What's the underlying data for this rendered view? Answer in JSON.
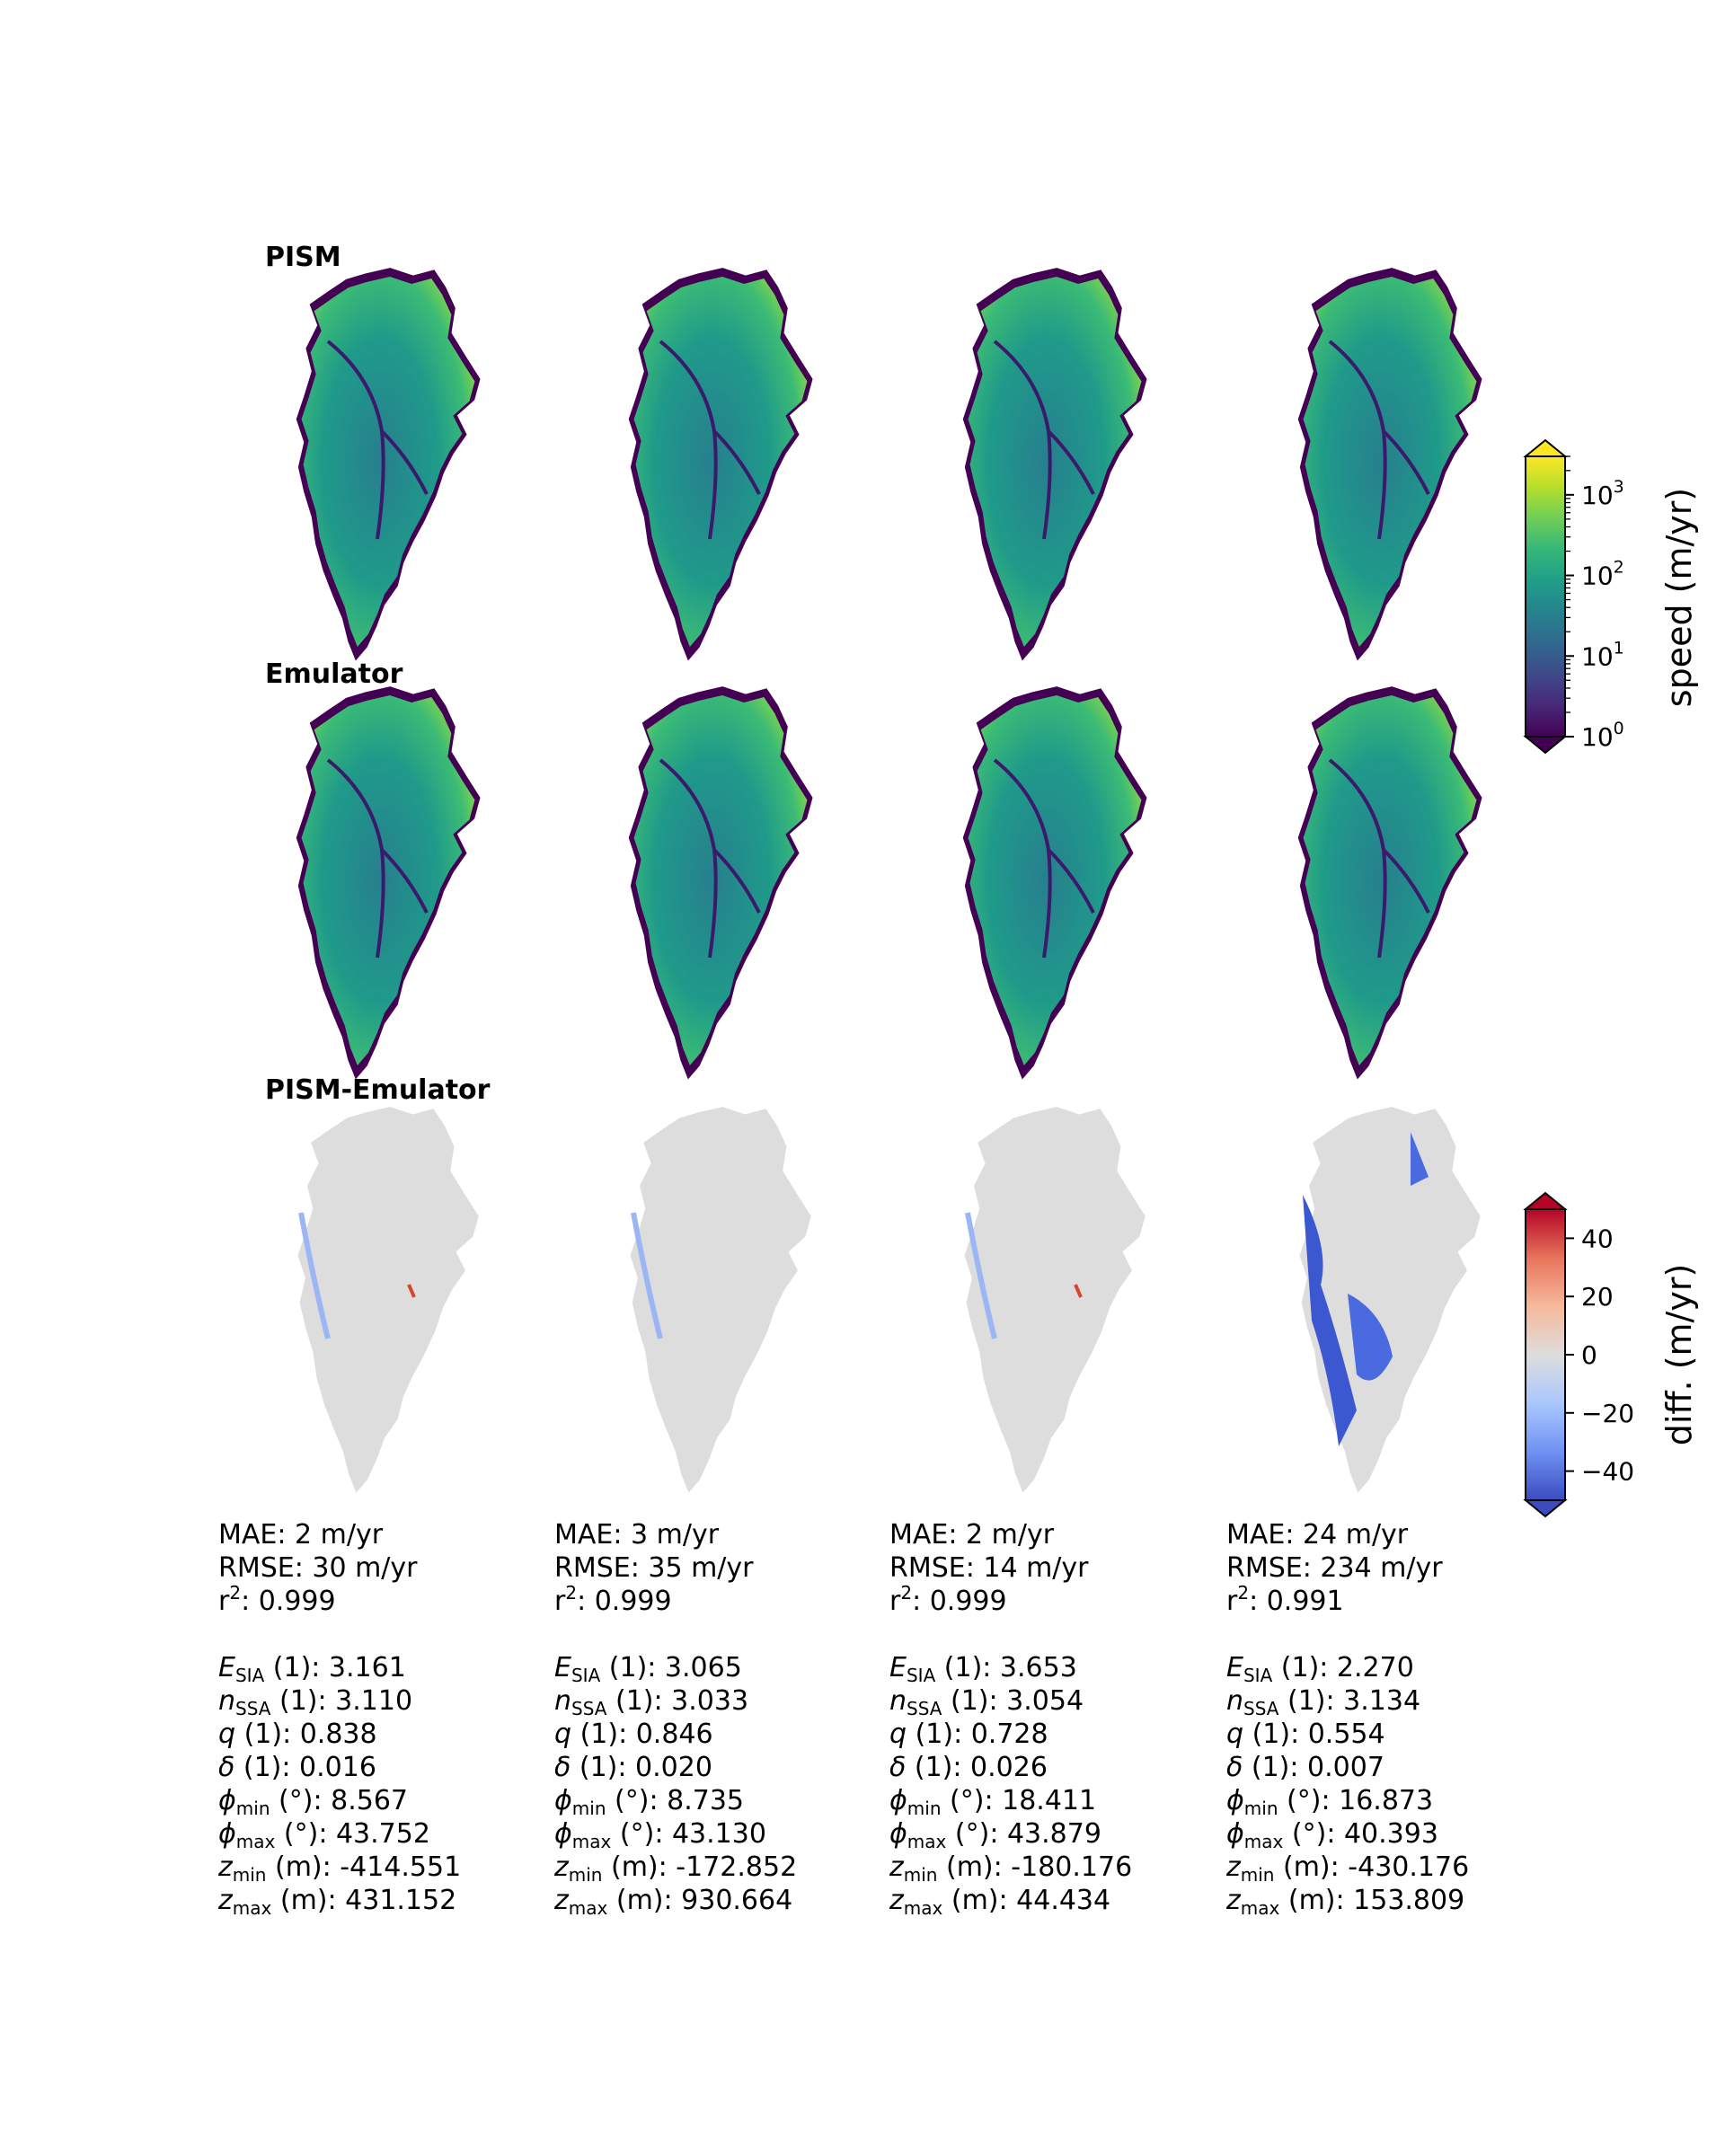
{
  "chart_data": {
    "type": "heatmap",
    "rows": [
      "PISM",
      "Emulator",
      "PISM-Emulator"
    ],
    "speed_colorbar": {
      "label": "speed (m/yr)",
      "scale": "log",
      "range": [
        1,
        3000
      ],
      "ticks": [
        {
          "base": "10",
          "exp": "0",
          "value": 1
        },
        {
          "base": "10",
          "exp": "1",
          "value": 10
        },
        {
          "base": "10",
          "exp": "2",
          "value": 100
        },
        {
          "base": "10",
          "exp": "3",
          "value": 1000
        }
      ],
      "colormap": [
        "#440154",
        "#482878",
        "#3e4989",
        "#31688e",
        "#26828e",
        "#1f9e89",
        "#35b779",
        "#6ece58",
        "#b5de2b",
        "#fde725"
      ],
      "extend": "both"
    },
    "diff_colorbar": {
      "label": "diff. (m/yr)",
      "range": [
        -50,
        50
      ],
      "ticks": [
        "40",
        "20",
        "0",
        "−20",
        "−40"
      ],
      "tick_values": [
        40,
        20,
        0,
        -20,
        -40
      ],
      "colormap": [
        "#3b4cc0",
        "#6f92f3",
        "#aac7fd",
        "#dddddd",
        "#f7b89c",
        "#e7745b",
        "#b40426"
      ],
      "extend": "both"
    },
    "panels": [
      {
        "column": 1,
        "stats": {
          "mae": "MAE: 2 m/yr",
          "rmse": "RMSE: 30 m/yr",
          "r2_value": ": 0.999"
        },
        "params": {
          "e_sia": "3.161",
          "n_ssa": "3.110",
          "q": "0.838",
          "delta": "0.016",
          "phi_min": "8.567",
          "phi_max": "43.752",
          "z_min": "-414.551",
          "z_max": "431.152"
        },
        "diff_character": "mostly near zero, light blue along west margin, red streaks on east and southwest outlets"
      },
      {
        "column": 2,
        "stats": {
          "mae": "MAE: 3 m/yr",
          "rmse": "RMSE: 35 m/yr",
          "r2_value": ": 0.999"
        },
        "params": {
          "e_sia": "3.065",
          "n_ssa": "3.033",
          "q": "0.846",
          "delta": "0.020",
          "phi_min": "8.735",
          "phi_max": "43.130",
          "z_min": "-172.852",
          "z_max": "930.664"
        },
        "diff_character": "mostly near zero, blue streaks along west margin and northeast"
      },
      {
        "column": 3,
        "stats": {
          "mae": "MAE: 2 m/yr",
          "rmse": "RMSE: 14 m/yr",
          "r2_value": ": 0.999"
        },
        "params": {
          "e_sia": "3.653",
          "n_ssa": "3.054",
          "q": "0.728",
          "delta": "0.026",
          "phi_min": "18.411",
          "phi_max": "43.879",
          "z_min": "-180.176",
          "z_max": "44.434"
        },
        "diff_character": "mostly near zero, blue streaks along west coast, red on southeast outlets"
      },
      {
        "column": 4,
        "stats": {
          "mae": "MAE: 24 m/yr",
          "rmse": "RMSE: 234 m/yr",
          "r2_value": ": 0.991"
        },
        "params": {
          "e_sia": "2.270",
          "n_ssa": "3.134",
          "q": "0.554",
          "delta": "0.007",
          "phi_min": "16.873",
          "phi_max": "40.393",
          "z_min": "-430.176",
          "z_max": "153.809"
        },
        "diff_character": "large negative (blue) regions along west margin and south"
      }
    ]
  },
  "param_labels": {
    "e_sym": "E",
    "e_sub": "SIA",
    "e_unit": " (1): ",
    "n_sym": "n",
    "n_sub": "SSA",
    "n_unit": " (1): ",
    "q_sym": "q",
    "q_unit": " (1): ",
    "delta_sym": "δ",
    "delta_unit": " (1): ",
    "phi_sym": "ϕ",
    "phimin_sub": "min",
    "phimax_sub": "max",
    "phi_unit": " (°): ",
    "z_sym": "z",
    "zmin_sub": "min",
    "zmax_sub": "max",
    "z_unit": " (m): ",
    "r_sym": "r",
    "r_exp": "2"
  }
}
